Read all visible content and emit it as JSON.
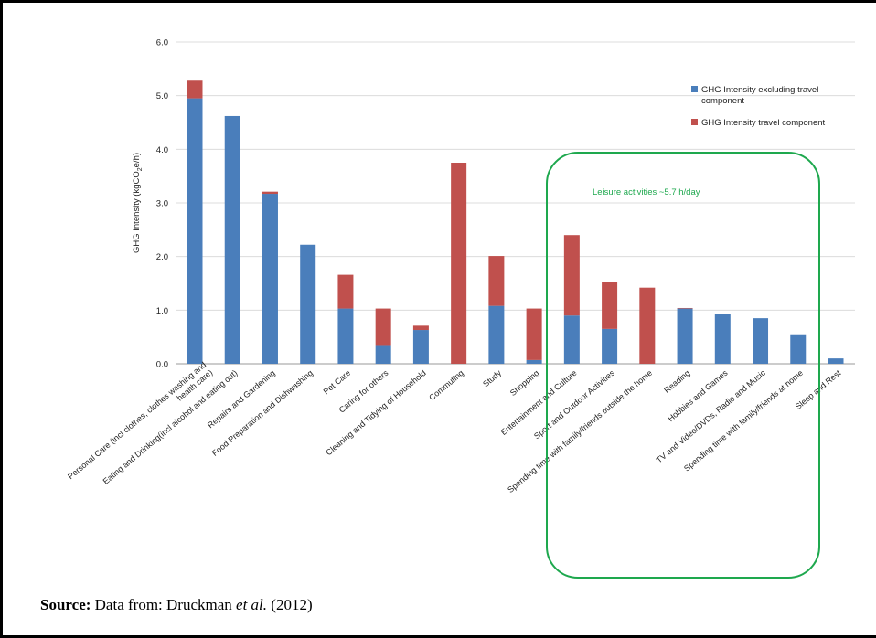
{
  "source": {
    "label": "Source:",
    "text": "Data from: Druckman ",
    "etal": "et al.",
    "year": " (2012)"
  },
  "chart_data": {
    "type": "bar",
    "stacked": true,
    "ylabel_prefix": "GHG Intensity (kgCO",
    "ylabel_sub": "2",
    "ylabel_suffix": "e/h)",
    "ylim": [
      0,
      6
    ],
    "yticks": [
      "0.0",
      "1.0",
      "2.0",
      "3.0",
      "4.0",
      "5.0",
      "6.0"
    ],
    "grid": true,
    "legend_position": "top-right",
    "categories": [
      "Personal Care (incl clothes, clothes washing and health care)",
      "Eating and Drinking(incl alcohol and eating out)",
      "Repairs and Gardening",
      "Food Preparation and Dishwashing",
      "Pet Care",
      "Caring for others",
      "Cleaning and Tidying of Household",
      "Commuting",
      "Study",
      "Shopping",
      "Entertainment and Culture",
      "Sport and Outdoor Activities",
      "Spending time with family/friends outside the home",
      "Reading",
      "Hobbies and Games",
      "TV and Video/DVDs, Radio and Music",
      "Spending time with family/friends at home",
      "Sleep and Rest"
    ],
    "series": [
      {
        "name": "GHG Intensity excluding travel component",
        "color": "#4a7ebb",
        "values": [
          4.95,
          4.62,
          3.17,
          2.22,
          1.03,
          0.35,
          0.63,
          0.0,
          1.08,
          0.07,
          0.9,
          0.65,
          0.0,
          1.03,
          0.93,
          0.85,
          0.55,
          0.1
        ]
      },
      {
        "name": "GHG Intensity travel component",
        "color": "#c0504d",
        "values": [
          0.33,
          0.0,
          0.04,
          0.0,
          0.63,
          0.68,
          0.08,
          3.75,
          0.93,
          0.96,
          1.5,
          0.88,
          1.42,
          0.01,
          0.0,
          0.0,
          0.0,
          0.0
        ]
      }
    ],
    "annotation": {
      "text": "Leisure activities ~5.7 h/day",
      "color": "#1ea84e"
    }
  }
}
